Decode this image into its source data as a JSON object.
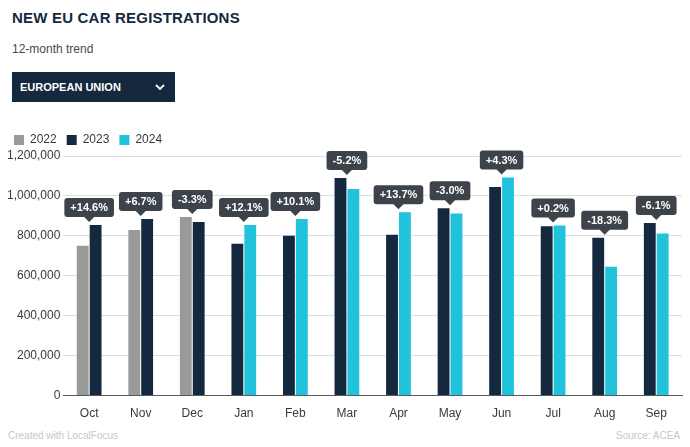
{
  "chart_data": {
    "type": "bar",
    "title": "NEW EU CAR REGISTRATIONS",
    "subtitle": "12-month trend",
    "selector": "EUROPEAN UNION",
    "credit": "Created with LocalFocus",
    "source": "Source: ACEA",
    "categories": [
      "Oct",
      "Nov",
      "Dec",
      "Jan",
      "Feb",
      "Mar",
      "Apr",
      "May",
      "Jun",
      "Jul",
      "Aug",
      "Sep"
    ],
    "series": [
      {
        "name": "2022",
        "color": "#9a9a9a",
        "values": [
          750000,
          830000,
          895000,
          null,
          null,
          null,
          null,
          null,
          null,
          null,
          null,
          null
        ]
      },
      {
        "name": "2023",
        "color": "#14293d",
        "values": [
          855000,
          885000,
          870000,
          760000,
          800000,
          1090000,
          805000,
          938000,
          1045000,
          848000,
          790000,
          865000
        ]
      },
      {
        "name": "2024",
        "color": "#21c3dc",
        "values": [
          null,
          null,
          null,
          855000,
          885000,
          1035000,
          918000,
          912000,
          1092000,
          852000,
          645000,
          812000
        ]
      }
    ],
    "annotations": [
      "+14.6%",
      "+6.7%",
      "-3.3%",
      "+12.1%",
      "+10.1%",
      "-5.2%",
      "+13.7%",
      "-3.0%",
      "+4.3%",
      "+0.2%",
      "-18.3%",
      "-6.1%"
    ],
    "ylim": [
      0,
      1200000
    ],
    "yticks": [
      0,
      {
        "value": 200000,
        "label": "200,000"
      },
      {
        "value": 400000,
        "label": "400,000"
      },
      {
        "value": 600000,
        "label": "600,000"
      },
      {
        "value": 800000,
        "label": "800,000"
      },
      {
        "value": 1000000,
        "label": "1,000,000"
      },
      {
        "value": 1200000,
        "label": "1,200,000"
      }
    ],
    "grid": true,
    "legend": "top-left"
  }
}
